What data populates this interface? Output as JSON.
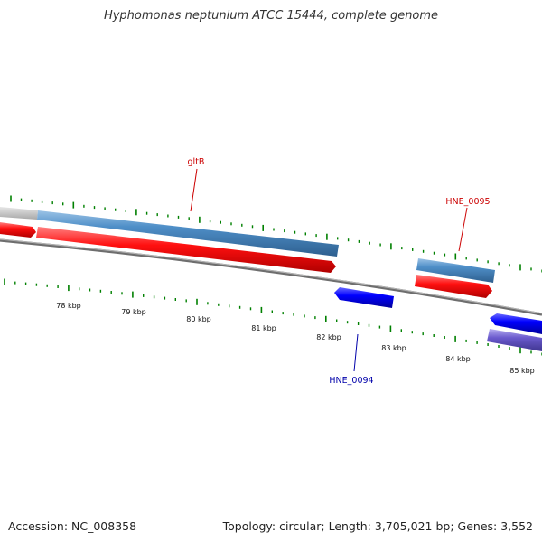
{
  "title": "Hyphomonas neptunium ATCC 15444, complete genome",
  "footer": {
    "accession": "Accession: NC_008358",
    "summary": "Topology: circular; Length: 3,705,021 bp; Genes: 3,552"
  },
  "scale_labels": [
    "78 kbp",
    "79 kbp",
    "80 kbp",
    "81 kbp",
    "82 kbp",
    "83 kbp",
    "84 kbp",
    "85 kbp"
  ],
  "gene_labels": {
    "gltB": "gltB",
    "hne0095": "HNE_0095",
    "hne0094": "HNE_0094"
  },
  "colors": {
    "forward_cds": "#4682b4",
    "forward_feature": "#ff0000",
    "reverse_cds": "#0000ff",
    "reverse_feature": "#6a5acd",
    "backbone": "#808080",
    "ticks": "#008000",
    "label_forward": "#cc0000",
    "label_reverse": "#0000aa"
  }
}
